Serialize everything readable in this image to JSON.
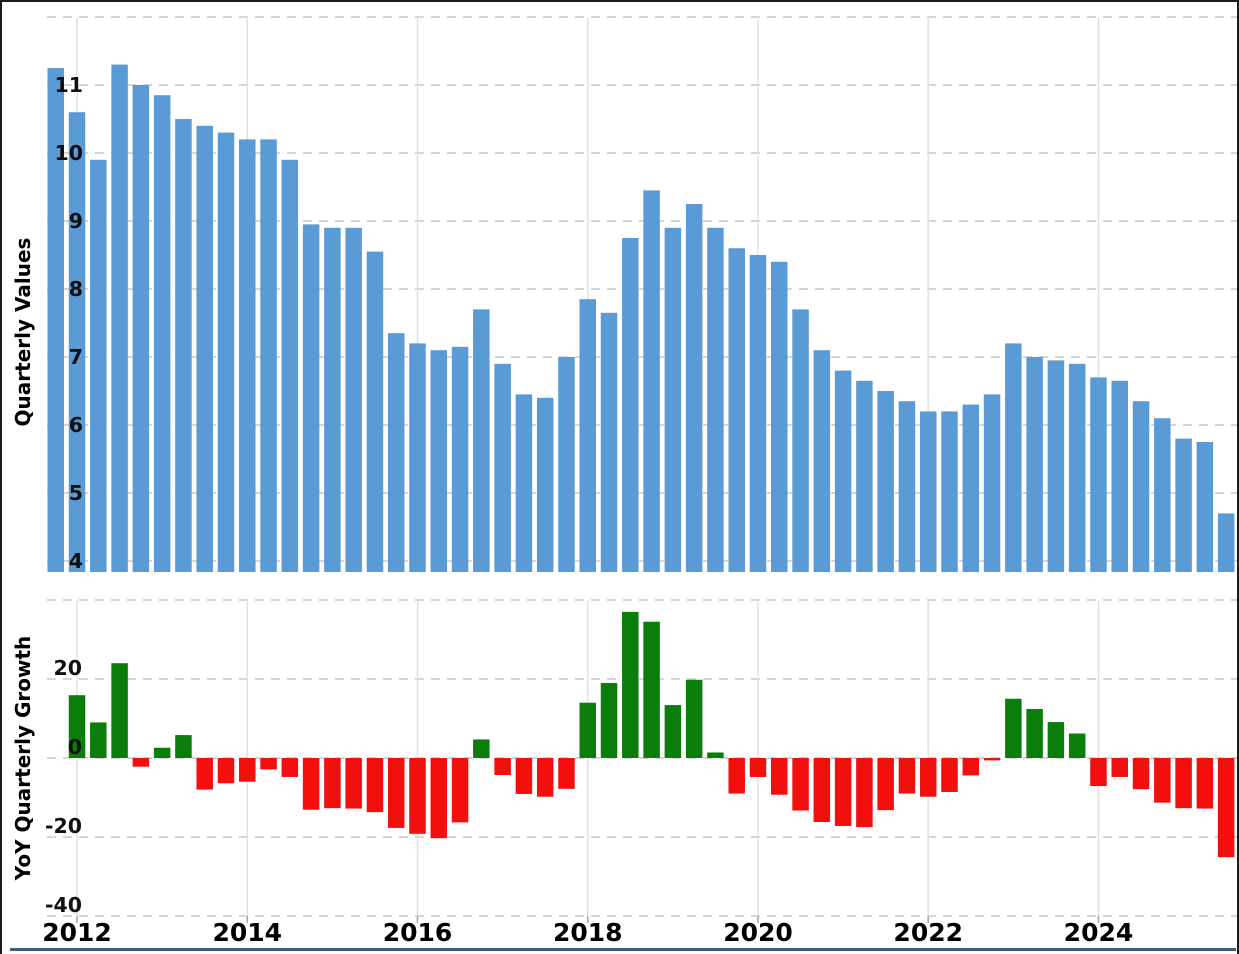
{
  "figure": {
    "background": "#ffffff",
    "frame_color": "#1b1b1b",
    "bottom_rule_color": "#3d5f7a",
    "grid_color": "#c9c9c9",
    "year_line_color": "#e0e0e0",
    "tick_mark_color": "#aaaaaa",
    "text_color": "#000000"
  },
  "x_axis": {
    "tick_labels": [
      "2012",
      "2014",
      "2016",
      "2018",
      "2020",
      "2022",
      "2024"
    ],
    "tick_bar_indices": [
      1,
      9,
      17,
      25,
      33,
      41,
      49
    ]
  },
  "chart_data": [
    {
      "type": "bar",
      "title": "",
      "ylabel": "Quarterly Values",
      "xlabel": "",
      "grid": true,
      "legend": "none",
      "bar_color": "#5b9bd5",
      "ylim": [
        3.84,
        12.16
      ],
      "ytick_labels": [
        "4",
        "5",
        "6",
        "7",
        "8",
        "9",
        "10",
        "11"
      ],
      "ytick_values": [
        4,
        5,
        6,
        7,
        8,
        9,
        10,
        11
      ],
      "grid_values": [
        4,
        5,
        6,
        7,
        8,
        9,
        10,
        11,
        12
      ],
      "x_period": "quarterly, 2012 through 2025",
      "values": [
        11.25,
        10.6,
        9.9,
        11.3,
        11.0,
        10.85,
        10.5,
        10.4,
        10.3,
        10.2,
        10.2,
        9.9,
        8.95,
        8.9,
        8.9,
        8.55,
        7.35,
        7.2,
        7.1,
        7.15,
        7.7,
        6.9,
        6.45,
        6.4,
        7.0,
        7.85,
        7.65,
        8.75,
        9.45,
        8.9,
        9.25,
        8.9,
        8.6,
        8.5,
        8.4,
        7.7,
        7.1,
        6.8,
        6.65,
        6.5,
        6.35,
        6.2,
        6.2,
        6.3,
        6.45,
        7.2,
        7.0,
        6.95,
        6.9,
        6.7,
        6.65,
        6.35,
        6.1,
        5.8,
        5.75,
        4.7
      ]
    },
    {
      "type": "bar",
      "title": "",
      "ylabel": "YoY Quarterly Growth",
      "xlabel": "",
      "grid": true,
      "legend": "none",
      "positive_color": "#0a7d0a",
      "negative_color": "#f40f0f",
      "ylim": [
        -49,
        40
      ],
      "ytick_labels": [
        "-40",
        "-20",
        "0",
        "20"
      ],
      "ytick_values": [
        -40,
        -20,
        0,
        20
      ],
      "grid_values": [
        -40,
        -20,
        0,
        20,
        40
      ],
      "x_period": "quarterly, 2012 through 2025",
      "values": [
        null,
        15.9,
        9.0,
        24.0,
        -2.2,
        2.6,
        5.8,
        -8.0,
        -6.4,
        -6.0,
        -2.9,
        -4.8,
        -13.1,
        -12.7,
        -12.8,
        -13.7,
        -17.7,
        -19.2,
        -20.3,
        -16.3,
        4.7,
        -4.3,
        -9.1,
        -9.8,
        -7.8,
        14.0,
        19.0,
        37.0,
        34.5,
        13.4,
        19.8,
        1.4,
        -9.0,
        -4.8,
        -9.3,
        -13.3,
        -16.2,
        -17.2,
        -17.5,
        -13.2,
        -9.0,
        -9.8,
        -8.6,
        -4.4,
        -0.6,
        15.0,
        12.4,
        9.1,
        6.2,
        -7.1,
        -4.8,
        -7.9,
        -11.3,
        -12.7,
        -12.8,
        -25.1
      ]
    }
  ]
}
